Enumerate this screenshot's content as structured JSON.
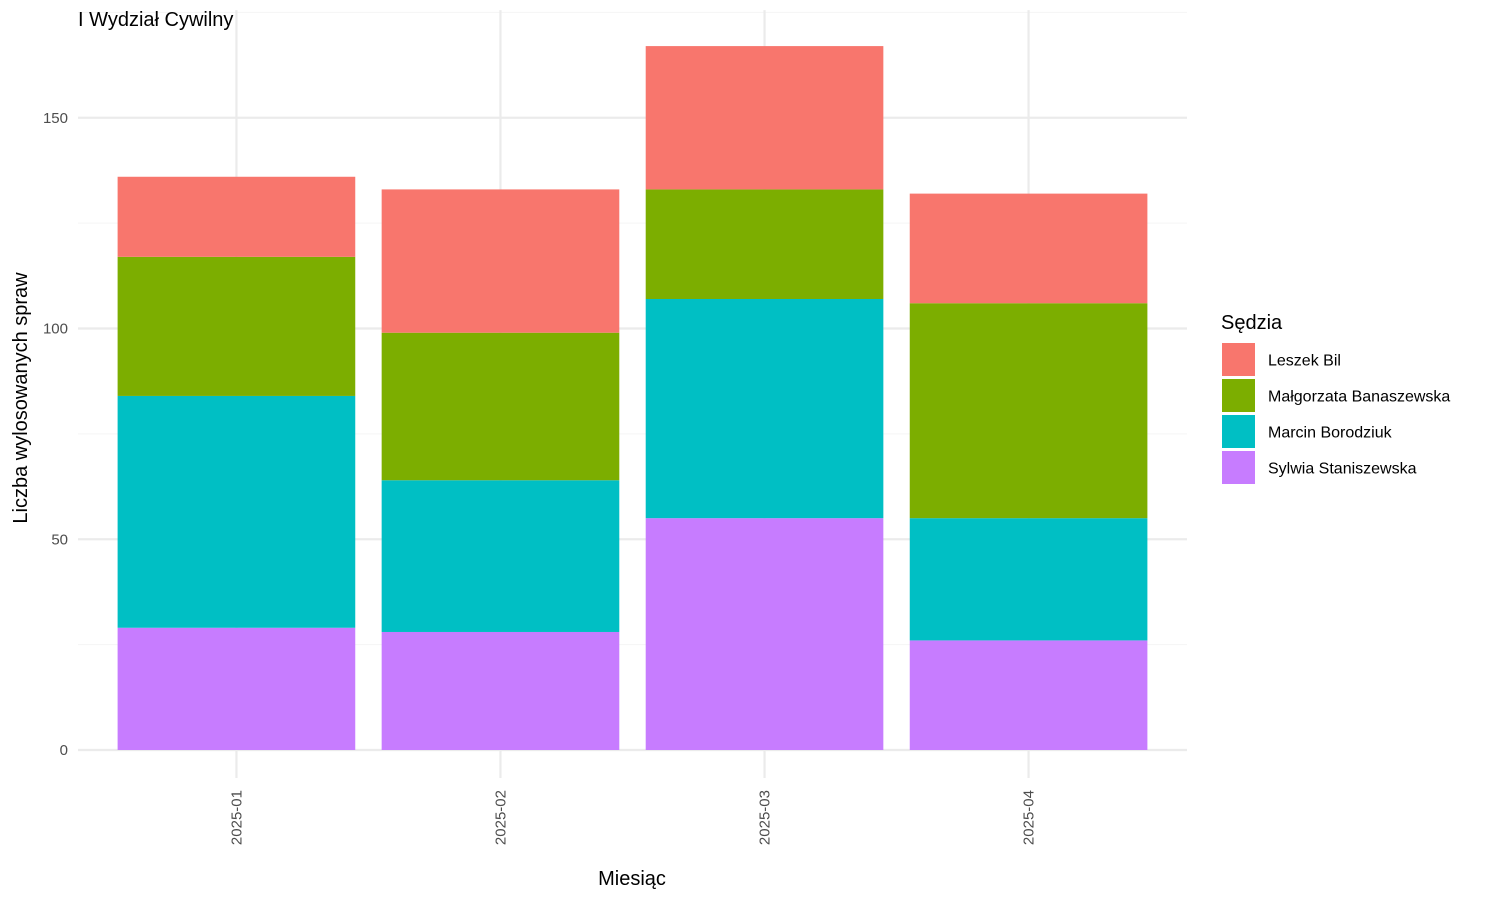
{
  "chart_data": {
    "type": "bar",
    "stacked": true,
    "title": "I Wydział Cywilny",
    "xlabel": "Miesiąc",
    "ylabel": "Liczba wylosowanych spraw",
    "categories": [
      "2025-01",
      "2025-02",
      "2025-03",
      "2025-04"
    ],
    "ylim": [
      0,
      167
    ],
    "yticks": [
      0,
      50,
      100,
      150
    ],
    "grid": true,
    "legend": {
      "title": "Sędzia",
      "position": "right"
    },
    "series": [
      {
        "name": "Leszek Bil",
        "color": "#F8766D",
        "values": [
          19,
          34,
          34,
          26
        ]
      },
      {
        "name": "Małgorzata Banaszewska",
        "color": "#7CAE00",
        "values": [
          33,
          35,
          26,
          51
        ]
      },
      {
        "name": "Marcin Borodziuk",
        "color": "#00BFC4",
        "values": [
          55,
          36,
          52,
          29
        ]
      },
      {
        "name": "Sylwia Staniszewska",
        "color": "#C77CFF",
        "values": [
          29,
          28,
          55,
          26
        ]
      }
    ],
    "stack_order_bottom_to_top": [
      "Sylwia Staniszewska",
      "Marcin Borodziuk",
      "Małgorzata Banaszewska",
      "Leszek Bil"
    ]
  }
}
